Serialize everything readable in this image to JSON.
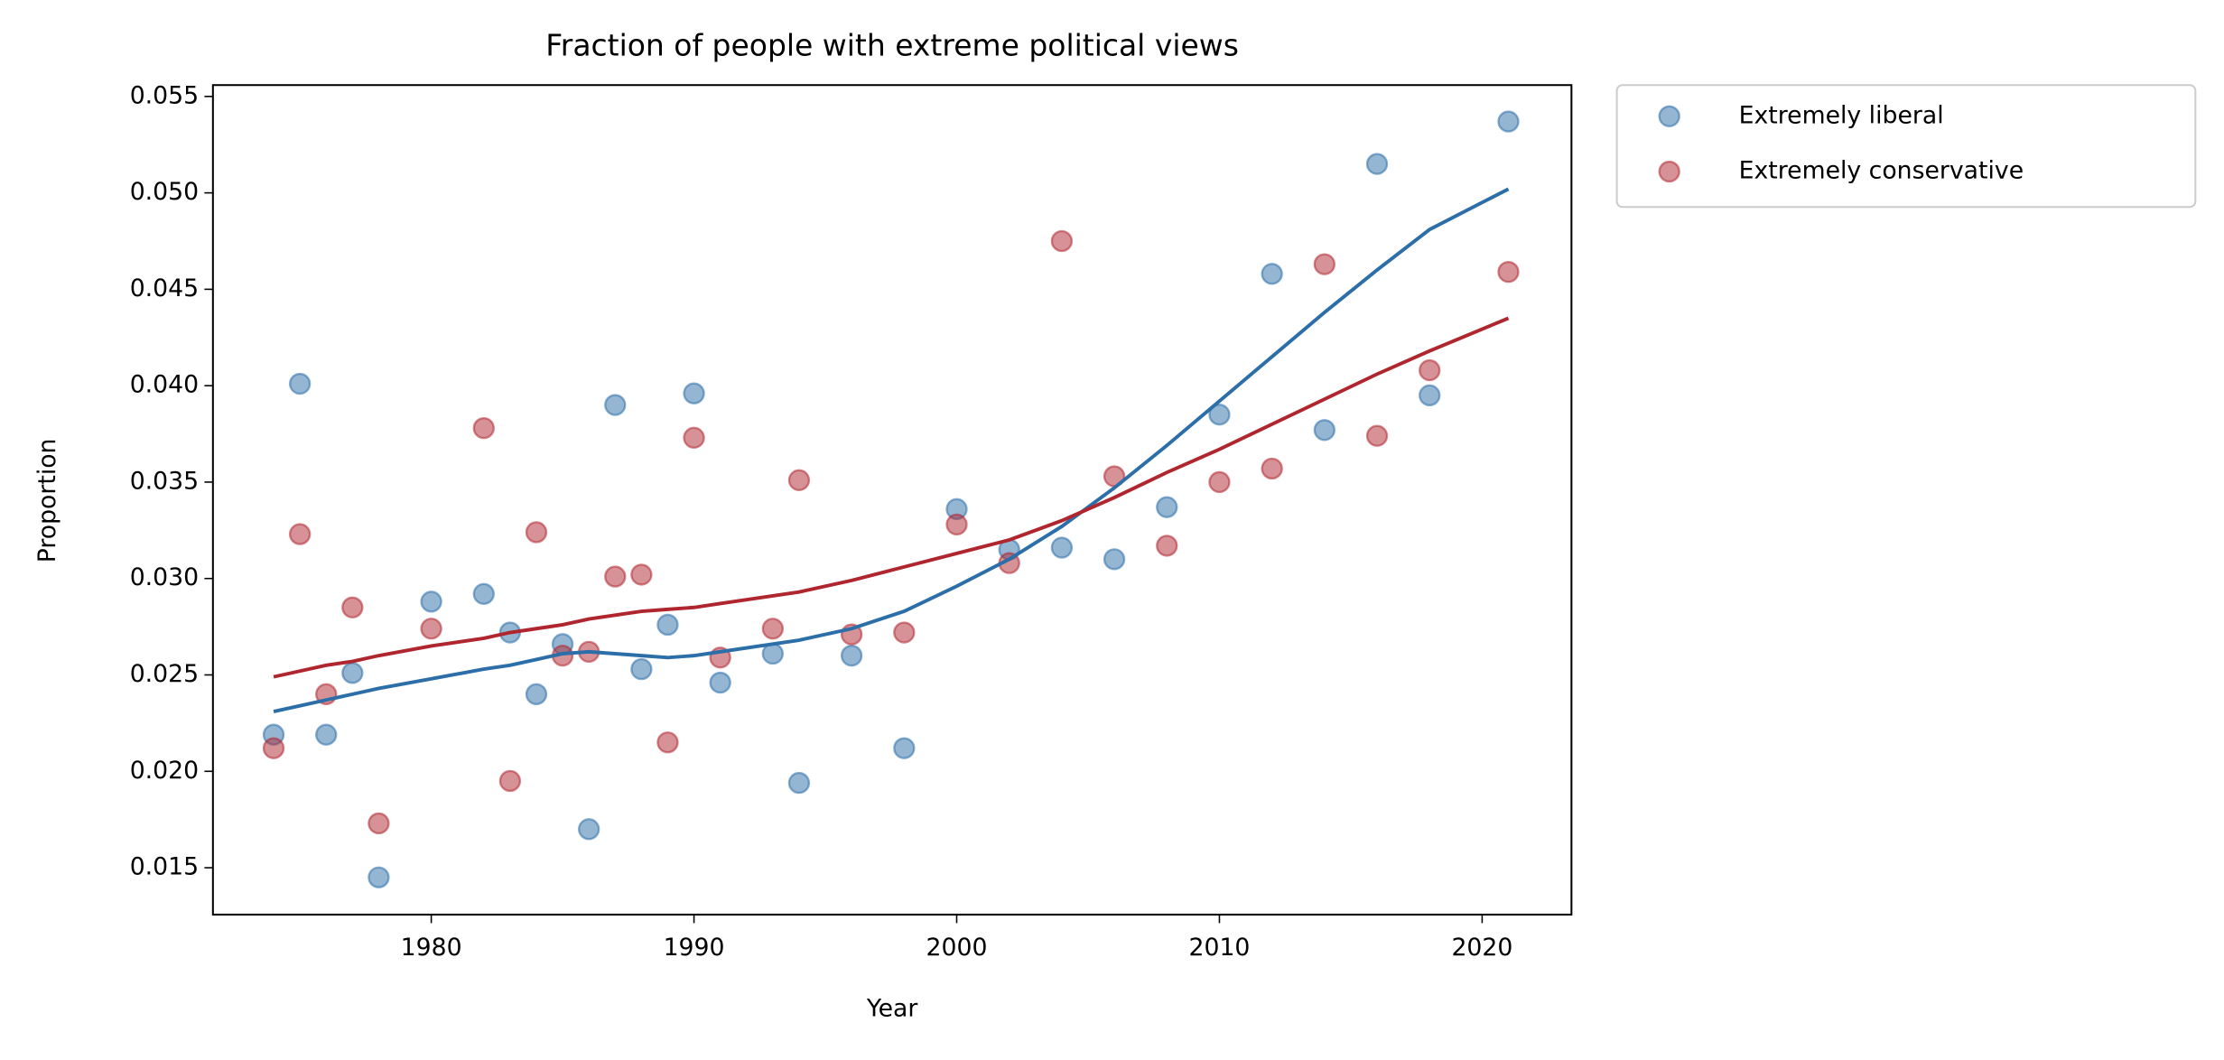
{
  "chart_data": {
    "type": "scatter",
    "title": "Fraction of people with extreme political views",
    "xlabel": "Year",
    "ylabel": "Proportion",
    "x": [
      1974,
      1975,
      1976,
      1977,
      1978,
      1980,
      1982,
      1983,
      1984,
      1985,
      1986,
      1987,
      1988,
      1989,
      1990,
      1991,
      1993,
      1994,
      1996,
      1998,
      2000,
      2002,
      2004,
      2006,
      2008,
      2010,
      2012,
      2014,
      2016,
      2018,
      2021
    ],
    "series": [
      {
        "name": "Extremely liberal",
        "color": "#2c6ea8",
        "values": [
          0.0219,
          0.0401,
          0.0219,
          0.0251,
          0.0145,
          0.0288,
          0.0292,
          0.0272,
          0.024,
          0.0266,
          0.017,
          0.039,
          0.0253,
          0.0276,
          0.0396,
          0.0246,
          0.0261,
          0.0194,
          0.026,
          0.0212,
          0.0336,
          0.0315,
          0.0316,
          0.031,
          0.0337,
          0.0385,
          0.0458,
          0.0377,
          0.0515,
          0.0395,
          0.0537
        ]
      },
      {
        "name": "Extremely conservative",
        "color": "#b0262f",
        "values": [
          0.0212,
          0.0323,
          0.024,
          0.0285,
          0.0173,
          0.0274,
          0.0378,
          0.0195,
          0.0324,
          0.026,
          0.0262,
          0.0301,
          0.0302,
          0.0215,
          0.0373,
          0.0259,
          0.0274,
          0.0351,
          0.0271,
          0.0272,
          0.0328,
          0.0308,
          0.0475,
          0.0353,
          0.0317,
          0.035,
          0.0357,
          0.0463,
          0.0374,
          0.0408,
          0.0459
        ]
      }
    ],
    "trends": [
      {
        "color": "#2c6ea8",
        "values": [
          0.0231,
          0.0234,
          0.0237,
          0.024,
          0.0243,
          0.0248,
          0.0253,
          0.0255,
          0.0258,
          0.0261,
          0.0262,
          0.0261,
          0.026,
          0.0259,
          0.026,
          0.0262,
          0.0266,
          0.0268,
          0.0274,
          0.0283,
          0.0296,
          0.031,
          0.0327,
          0.0347,
          0.0369,
          0.0392,
          0.0415,
          0.0438,
          0.046,
          0.0481,
          0.0502
        ]
      },
      {
        "color": "#b0262f",
        "values": [
          0.0249,
          0.0252,
          0.0255,
          0.0257,
          0.026,
          0.0265,
          0.0269,
          0.0272,
          0.0274,
          0.0276,
          0.0279,
          0.0281,
          0.0283,
          0.0284,
          0.0285,
          0.0287,
          0.0291,
          0.0293,
          0.0299,
          0.0306,
          0.0313,
          0.032,
          0.033,
          0.0342,
          0.0355,
          0.0367,
          0.038,
          0.0393,
          0.0406,
          0.0418,
          0.0435
        ]
      }
    ],
    "xlim": [
      1971.69,
      2023.4
    ],
    "xticks": [
      1980,
      1990,
      2000,
      2010,
      2020
    ],
    "ylim": [
      0.01257,
      0.05559
    ],
    "yticks": [
      0.015,
      {
        "value": 0.02,
        "label": "0.020"
      },
      0.025,
      {
        "value": 0.03,
        "label": "0.030"
      },
      0.035,
      {
        "value": 0.04,
        "label": "0.040"
      },
      0.045,
      {
        "value": 0.05,
        "label": "0.050"
      },
      0.055
    ],
    "legend": "outside upper right"
  }
}
